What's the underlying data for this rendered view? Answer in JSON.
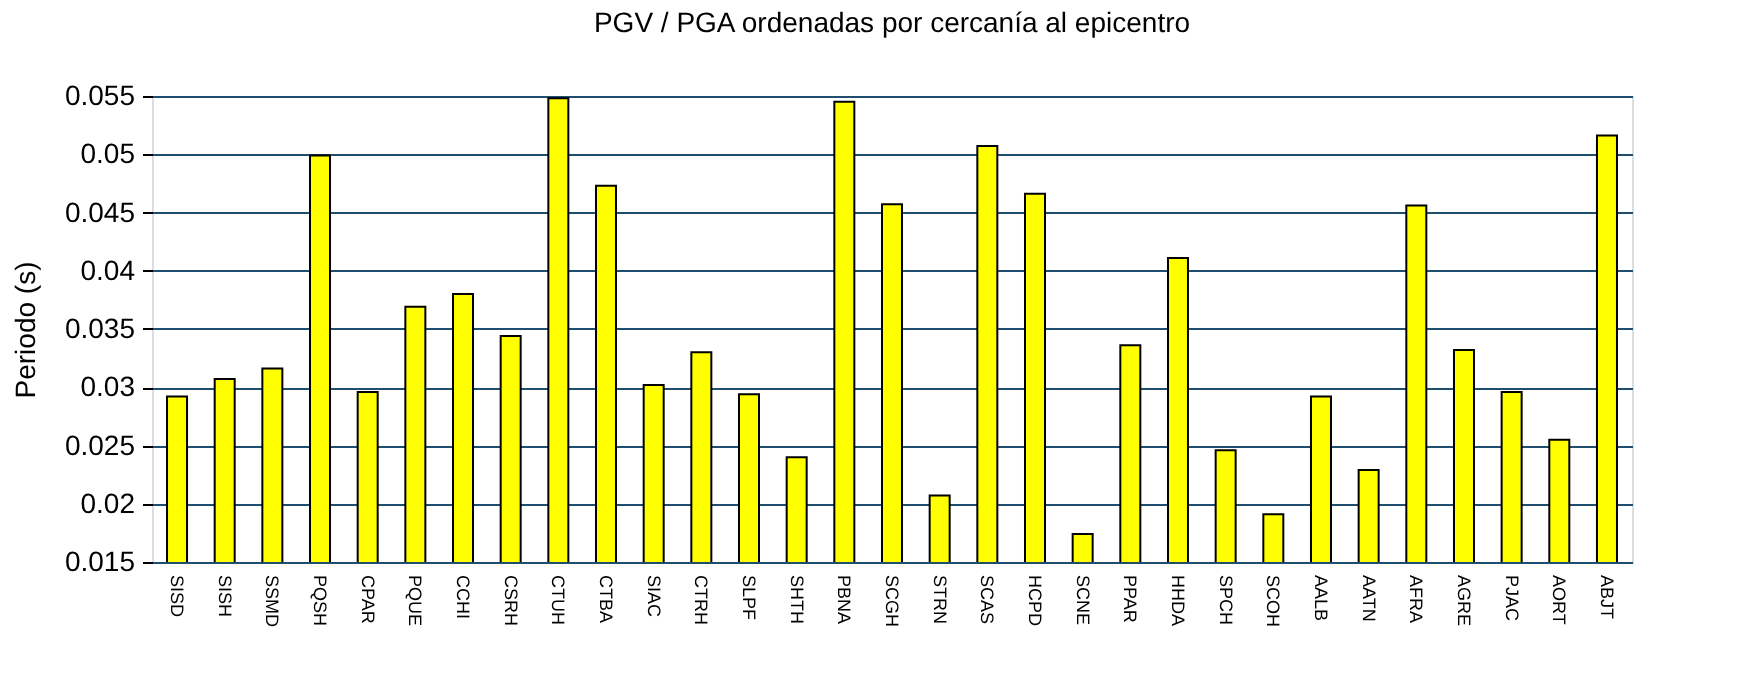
{
  "chart_data": {
    "type": "bar",
    "title": "PGV / PGA ordenadas por cercanía al epicentro",
    "ylabel": "Periodo (s)",
    "categories": [
      "SISD",
      "SISH",
      "SSMD",
      "PQSH",
      "CPAR",
      "PQUE",
      "CCHI",
      "CSRH",
      "CTUH",
      "CTBA",
      "SIAC",
      "CTRH",
      "SLPF",
      "SHTH",
      "PBNA",
      "SCGH",
      "STRN",
      "SCAS",
      "HCPD",
      "SCNE",
      "PPAR",
      "HHDA",
      "SPCH",
      "SCOH",
      "AALB",
      "AATN",
      "AFRA",
      "AGRE",
      "PJAC",
      "AORT",
      "ABJT"
    ],
    "values": [
      0.0292,
      0.0307,
      0.0316,
      0.0499,
      0.0296,
      0.0369,
      0.038,
      0.0344,
      0.0548,
      0.0473,
      0.0302,
      0.033,
      0.0294,
      0.024,
      0.0545,
      0.0457,
      0.0207,
      0.0507,
      0.0466,
      0.0174,
      0.0336,
      0.0411,
      0.0246,
      0.0191,
      0.0292,
      0.0229,
      0.0456,
      0.0332,
      0.0296,
      0.0255,
      0.0516
    ],
    "color": "#ffff00",
    "ylim": [
      0.015,
      0.055
    ],
    "yticks": [
      0.015,
      0.02,
      0.025,
      0.03,
      0.035,
      0.04,
      0.045,
      0.05,
      0.055
    ],
    "grid": "y"
  }
}
